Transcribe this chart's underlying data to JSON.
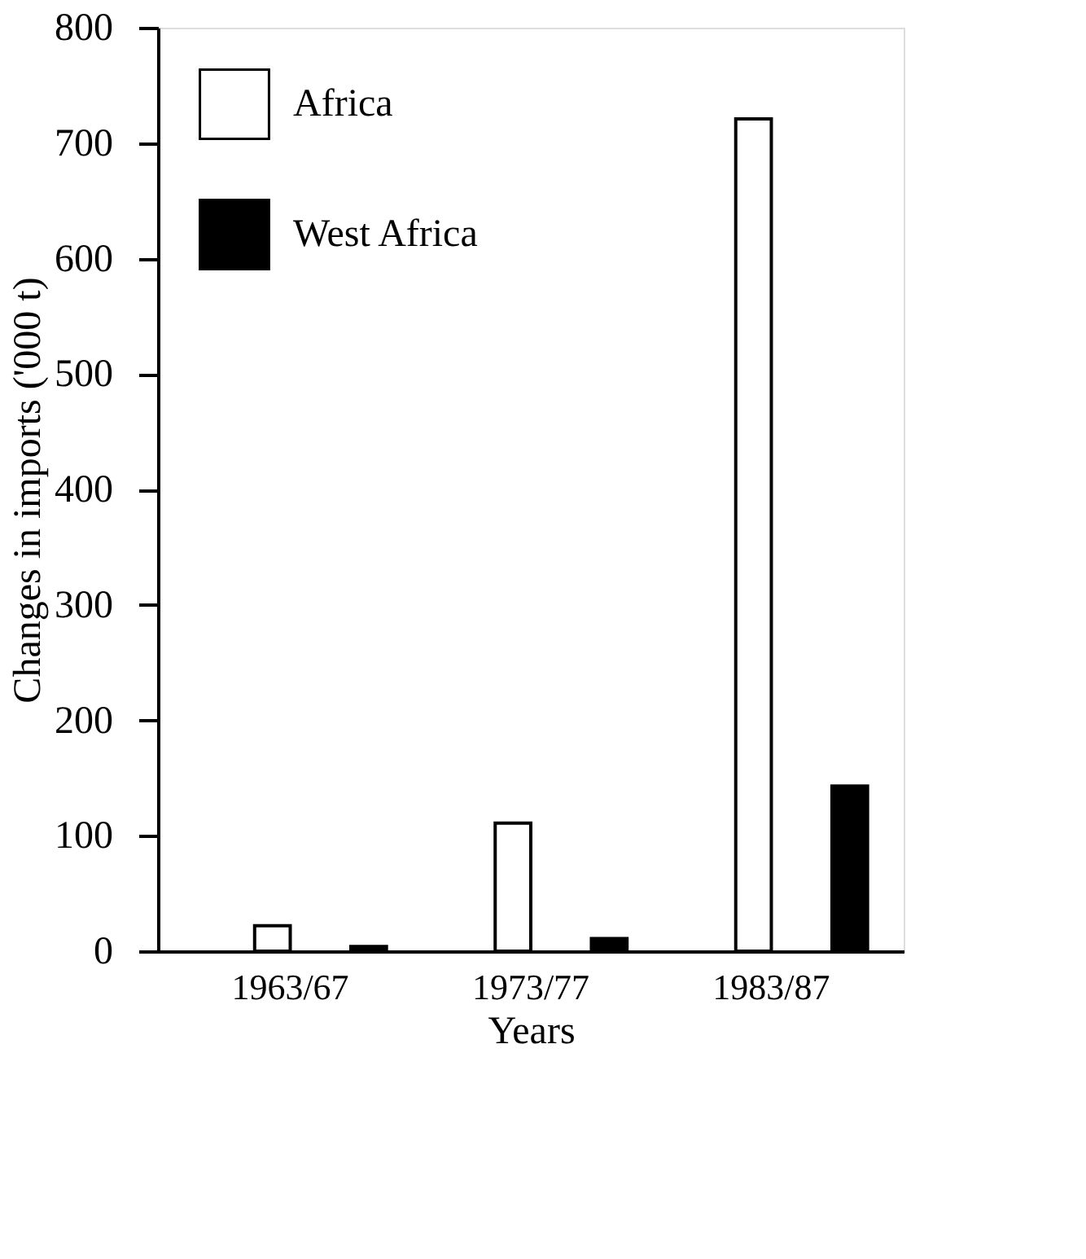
{
  "chart_data": {
    "type": "bar",
    "xlabel": "Years",
    "ylabel": "Changes in imports ('000 t)",
    "categories": [
      "1963/67",
      "1973/77",
      "1983/87"
    ],
    "series": [
      {
        "name": "Africa",
        "color": "#ffffff",
        "values": [
          22,
          111,
          721
        ]
      },
      {
        "name": "West Africa",
        "color": "#000000",
        "values": [
          4,
          11,
          143
        ]
      }
    ],
    "ylim": [
      0,
      800
    ],
    "yticks": [
      0,
      100,
      200,
      300,
      400,
      500,
      600,
      700,
      800
    ],
    "grid": false,
    "legend": "top left"
  }
}
